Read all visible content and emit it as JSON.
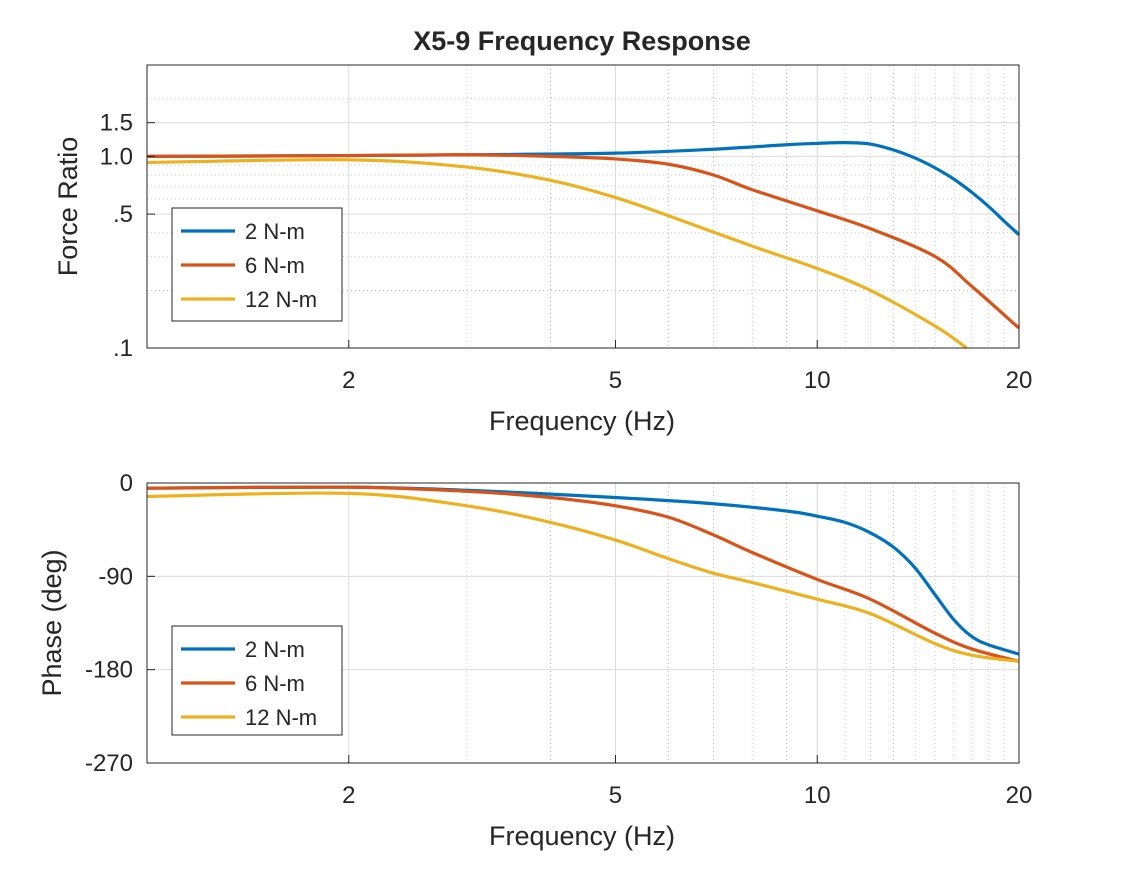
{
  "chart_data": [
    {
      "type": "line",
      "title": "X5-9 Frequency Response",
      "xlabel": "Frequency (Hz)",
      "ylabel": "Force Ratio",
      "xscale": "log",
      "yscale": "log",
      "xlim": [
        1,
        20
      ],
      "ylim": [
        0.1,
        3
      ],
      "xticks": [
        {
          "v": 2,
          "label": "2"
        },
        {
          "v": 5,
          "label": "5"
        },
        {
          "v": 10,
          "label": "10"
        },
        {
          "v": 20,
          "label": "20"
        }
      ],
      "yticks": [
        {
          "v": 0.1,
          "label": ".1"
        },
        {
          "v": 0.5,
          "label": ".5"
        },
        {
          "v": 1.0,
          "label": "1.0"
        },
        {
          "v": 1.5,
          "label": "1.5"
        }
      ],
      "grid": true,
      "legend_placement": "left",
      "series": [
        {
          "name": "2 N-m",
          "color": "#0072BD",
          "x": [
            1,
            2,
            3,
            5,
            7,
            9,
            10,
            11,
            12,
            13,
            14,
            15,
            16,
            17,
            18,
            19,
            20
          ],
          "y": [
            1.0,
            1.01,
            1.02,
            1.04,
            1.09,
            1.15,
            1.17,
            1.18,
            1.16,
            1.08,
            0.98,
            0.87,
            0.76,
            0.65,
            0.55,
            0.46,
            0.39
          ]
        },
        {
          "name": "6 N-m",
          "color": "#D95319",
          "x": [
            1,
            2,
            3,
            4,
            5,
            6,
            7,
            8,
            10,
            12,
            15,
            17,
            20
          ],
          "y": [
            1.0,
            1.01,
            1.02,
            1.0,
            0.97,
            0.91,
            0.8,
            0.67,
            0.52,
            0.42,
            0.3,
            0.21,
            0.127
          ]
        },
        {
          "name": "12 N-m",
          "color": "#EDB120",
          "x": [
            1,
            2,
            3,
            4,
            5,
            6,
            8,
            10,
            12,
            15,
            16.7
          ],
          "y": [
            0.93,
            0.96,
            0.88,
            0.75,
            0.61,
            0.49,
            0.34,
            0.26,
            0.2,
            0.13,
            0.1
          ]
        }
      ]
    },
    {
      "type": "line",
      "xlabel": "Frequency (Hz)",
      "ylabel": "Phase (deg)",
      "xscale": "log",
      "xlim": [
        1,
        20
      ],
      "ylim": [
        -270,
        0
      ],
      "xticks": [
        {
          "v": 2,
          "label": "2"
        },
        {
          "v": 5,
          "label": "5"
        },
        {
          "v": 10,
          "label": "10"
        },
        {
          "v": 20,
          "label": "20"
        }
      ],
      "yticks": [
        {
          "v": 0,
          "label": "0"
        },
        {
          "v": -90,
          "label": "-90"
        },
        {
          "v": -180,
          "label": "-180"
        },
        {
          "v": -270,
          "label": "-270"
        }
      ],
      "grid": true,
      "legend_placement": "bottom-left",
      "series": [
        {
          "name": "2 N-m",
          "color": "#0072BD",
          "x": [
            1,
            2,
            3,
            5,
            7,
            9,
            10,
            11,
            12,
            13,
            14,
            15,
            16,
            17,
            18,
            20
          ],
          "y": [
            -5,
            -4,
            -7,
            -14,
            -20,
            -27,
            -32,
            -38,
            -48,
            -62,
            -82,
            -108,
            -132,
            -148,
            -156,
            -165
          ]
        },
        {
          "name": "6 N-m",
          "color": "#D95319",
          "x": [
            1,
            2,
            3,
            4,
            5,
            6,
            7,
            8,
            10,
            12,
            15,
            17,
            20
          ],
          "y": [
            -5,
            -4,
            -8,
            -14,
            -22,
            -33,
            -50,
            -67,
            -93,
            -112,
            -145,
            -160,
            -172
          ]
        },
        {
          "name": "12 N-m",
          "color": "#EDB120",
          "x": [
            1,
            2,
            3,
            4,
            5,
            6,
            7,
            8,
            10,
            12,
            15,
            17,
            20
          ],
          "y": [
            -13,
            -10,
            -22,
            -38,
            -55,
            -73,
            -87,
            -96,
            -112,
            -126,
            -155,
            -166,
            -172
          ]
        }
      ]
    }
  ]
}
